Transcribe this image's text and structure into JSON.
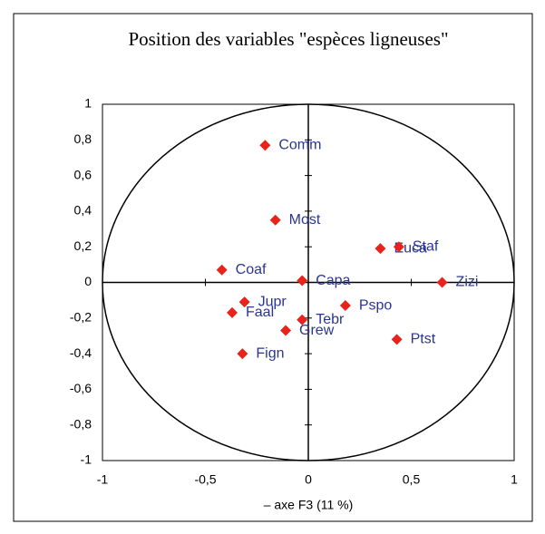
{
  "chart_data": {
    "type": "scatter",
    "title": "Position des variables \"espèces ligneuses\"",
    "xlabel": "– axe F3 (11 %)",
    "labels": [
      "Comm",
      "Most",
      "Euca",
      "Staf",
      "Coaf",
      "Capa",
      "Zizi",
      "Jupr",
      "Faal",
      "Pspo",
      "Tebr",
      "Grew",
      "Ptst",
      "Fign"
    ],
    "x": [
      -0.21,
      -0.16,
      0.35,
      0.44,
      -0.42,
      -0.03,
      0.65,
      -0.31,
      -0.37,
      0.18,
      -0.03,
      -0.11,
      0.43,
      -0.32
    ],
    "values": [
      0.77,
      0.35,
      0.19,
      0.2,
      0.07,
      0.01,
      0,
      -0.11,
      -0.17,
      -0.13,
      -0.21,
      -0.27,
      -0.32,
      -0.4
    ],
    "color": "#e8231b",
    "xlim": [
      -1,
      1
    ],
    "ylim": [
      -1,
      1
    ],
    "xticks": [
      -1,
      {
        "value": -0.5,
        "label": "-0,5"
      },
      0,
      {
        "value": 0.5,
        "label": "0,5"
      },
      1
    ],
    "yticks": [
      {
        "value": -1,
        "label": "-1"
      },
      {
        "value": -0.8,
        "label": "-0,8"
      },
      {
        "value": -0.6,
        "label": "-0,6"
      },
      {
        "value": -0.4,
        "label": "-0,4"
      },
      {
        "value": -0.2,
        "label": "-0,2"
      },
      0,
      {
        "value": 0.2,
        "label": "0,2"
      },
      {
        "value": 0.4,
        "label": "0,4"
      },
      {
        "value": 0.6,
        "label": "0,6"
      },
      {
        "value": 0.8,
        "label": "0,8"
      },
      1
    ]
  }
}
